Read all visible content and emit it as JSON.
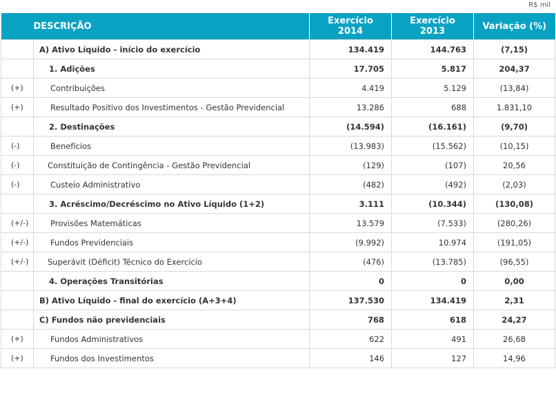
{
  "unit_label": "R$ mil",
  "header": {
    "description": "DESCRIÇÃO",
    "col_2014_line1": "Exercício",
    "col_2014_line2": "2014",
    "col_2013_line1": "Exercício",
    "col_2013_line2": "2013",
    "col_variation": "Variação (%)"
  },
  "rows": [
    {
      "sign": "",
      "label": "A) Ativo Líquido - início do exercício",
      "v2014": "134.419",
      "v2013": "144.763",
      "var": "(7,15)"
    },
    {
      "sign": "",
      "label": "1. Adições",
      "v2014": "17.705",
      "v2013": "5.817",
      "var": "204,37"
    },
    {
      "sign": "(+)",
      "label": "Contribuições",
      "v2014": "4.419",
      "v2013": "5.129",
      "var": "(13,84)"
    },
    {
      "sign": "(+)",
      "label": "Resultado Positivo dos Investimentos - Gestão Previdencial",
      "v2014": "13.286",
      "v2013": "688",
      "var": "1.831,10"
    },
    {
      "sign": "",
      "label": "2. Destinações",
      "v2014": "(14.594)",
      "v2013": "(16.161)",
      "var": "(9,70)"
    },
    {
      "sign": "(-)",
      "label": "Benefícios",
      "v2014": "(13.983)",
      "v2013": "(15.562)",
      "var": "(10,15)"
    },
    {
      "sign": "(-)",
      "label": "Constituição de Contingência - Gestão Previdencial",
      "v2014": "(129)",
      "v2013": "(107)",
      "var": "20,56"
    },
    {
      "sign": "(-)",
      "label": "Custeio Administrativo",
      "v2014": "(482)",
      "v2013": "(492)",
      "var": "(2,03)"
    },
    {
      "sign": "",
      "label": "3. Acréscimo/Decréscimo no Ativo Líquido (1+2)",
      "v2014": "3.111",
      "v2013": "(10.344)",
      "var": "(130,08)"
    },
    {
      "sign": "(+/-)",
      "label": "Provisões Matemáticas",
      "v2014": "13.579",
      "v2013": "(7.533)",
      "var": "(280,26)"
    },
    {
      "sign": "(+/-)",
      "label": "Fundos Previdenciais",
      "v2014": "(9.992)",
      "v2013": "10.974",
      "var": "(191,05)"
    },
    {
      "sign": "(+/-)",
      "label": "Superávit (Déficit) Técnico do Exercício",
      "v2014": "(476)",
      "v2013": "(13.785)",
      "var": "(96,55)"
    },
    {
      "sign": "",
      "label": "4. Operações Transitórias",
      "v2014": "0",
      "v2013": "0",
      "var": "0,00"
    },
    {
      "sign": "",
      "label": "B) Ativo Líquido - final do exercício (A+3+4)",
      "v2014": "137.530",
      "v2013": "134.419",
      "var": "2,31"
    },
    {
      "sign": "",
      "label": "C) Fundos não previdenciais",
      "v2014": "768",
      "v2013": "618",
      "var": "24,27"
    },
    {
      "sign": "(+)",
      "label": "Fundos Administrativos",
      "v2014": "622",
      "v2013": "491",
      "var": "26,68"
    },
    {
      "sign": "(+)",
      "label": "Fundos dos Investimentos",
      "v2014": "146",
      "v2013": "127",
      "var": "14,96"
    }
  ]
}
